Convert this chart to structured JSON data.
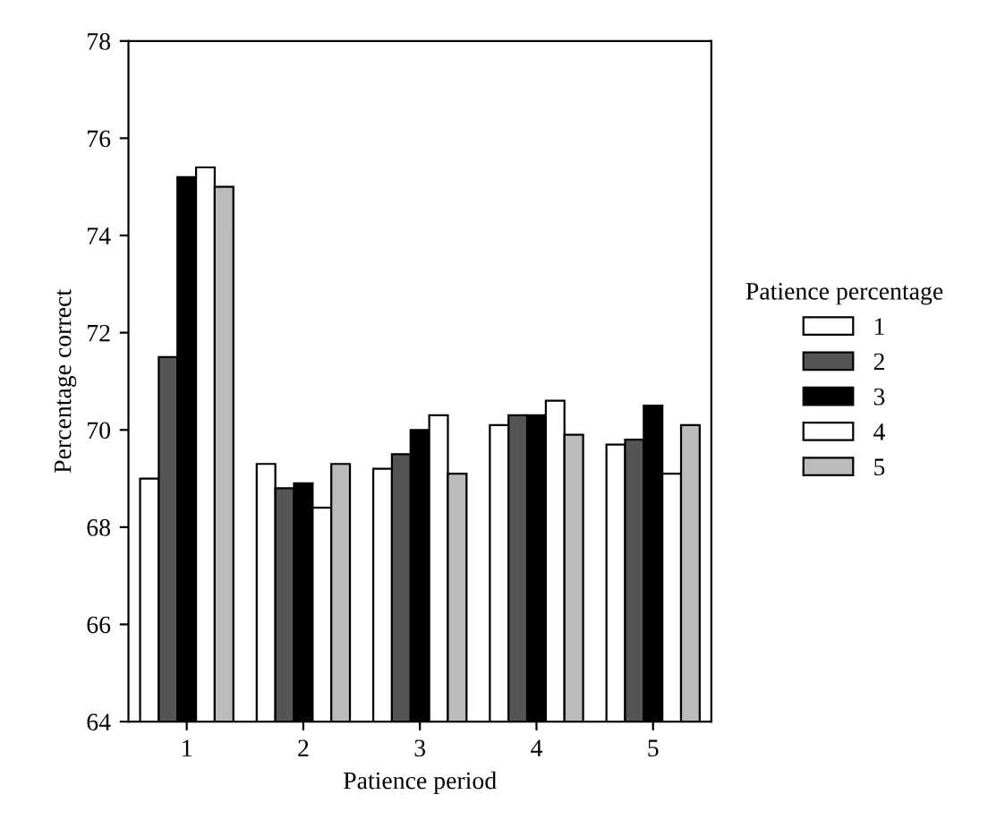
{
  "chart_data": {
    "type": "bar",
    "xlabel": "Patience period",
    "ylabel": "Percentage correct",
    "legend_title": "Patience percentage",
    "categories": [
      "1",
      "2",
      "3",
      "4",
      "5"
    ],
    "series": [
      {
        "name": "1",
        "color": "#ffffff",
        "values": [
          69.0,
          69.3,
          69.2,
          70.1,
          69.7
        ]
      },
      {
        "name": "2",
        "color": "#555555",
        "values": [
          71.5,
          68.8,
          69.5,
          70.3,
          69.8
        ]
      },
      {
        "name": "3",
        "color": "#000000",
        "values": [
          75.2,
          68.9,
          70.0,
          70.3,
          70.5
        ]
      },
      {
        "name": "4",
        "color": "#ffffff",
        "values": [
          75.4,
          68.4,
          70.3,
          70.6,
          69.1
        ]
      },
      {
        "name": "5",
        "color": "#bbbbbb",
        "values": [
          75.0,
          69.3,
          69.1,
          69.9,
          70.1
        ]
      }
    ],
    "ylim": [
      64,
      78
    ],
    "yticks": [
      64,
      66,
      68,
      70,
      72,
      74,
      76,
      78
    ],
    "grid": false,
    "legend": "right"
  }
}
